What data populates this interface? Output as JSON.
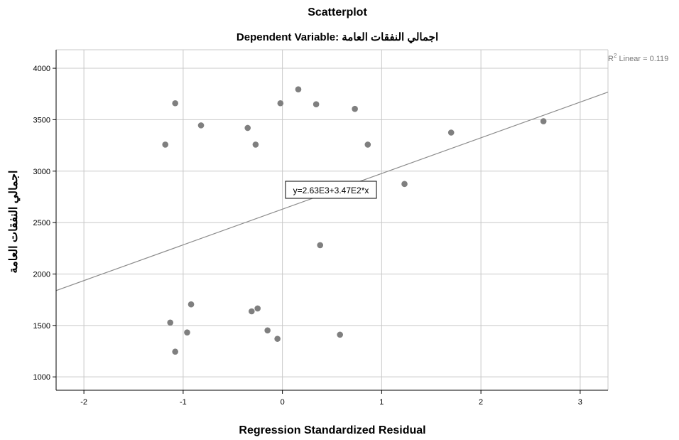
{
  "chart_data": {
    "type": "scatter",
    "title": "Scatterplot",
    "subtitle": "Dependent Variable: اجمالي النفقات العامة",
    "xlabel": "Regression Standardized Residual",
    "ylabel": "اجمالي النفقات العامة",
    "xlim": [
      -2.28,
      3.28
    ],
    "ylim": [
      870,
      4180
    ],
    "x_ticks": [
      "-2",
      "-1",
      "0",
      "1",
      "2",
      "3"
    ],
    "y_ticks": [
      "1000",
      "1500",
      "2000",
      "2500",
      "3000",
      "3500",
      "4000"
    ],
    "grid": true,
    "points": [
      {
        "x": -1.08,
        "y": 3660
      },
      {
        "x": -0.82,
        "y": 3445
      },
      {
        "x": -1.18,
        "y": 3258
      },
      {
        "x": -0.35,
        "y": 3420
      },
      {
        "x": -0.27,
        "y": 3258
      },
      {
        "x": -0.02,
        "y": 3660
      },
      {
        "x": 0.16,
        "y": 3795
      },
      {
        "x": 0.34,
        "y": 3650
      },
      {
        "x": 0.73,
        "y": 3605
      },
      {
        "x": 0.86,
        "y": 3258
      },
      {
        "x": 1.23,
        "y": 2875
      },
      {
        "x": 1.7,
        "y": 3375
      },
      {
        "x": 2.63,
        "y": 3485
      },
      {
        "x": 0.38,
        "y": 2280
      },
      {
        "x": -1.13,
        "y": 1528
      },
      {
        "x": -0.92,
        "y": 1705
      },
      {
        "x": -0.96,
        "y": 1432
      },
      {
        "x": -1.08,
        "y": 1245
      },
      {
        "x": -0.31,
        "y": 1637
      },
      {
        "x": -0.25,
        "y": 1665
      },
      {
        "x": -0.15,
        "y": 1452
      },
      {
        "x": -0.05,
        "y": 1370
      },
      {
        "x": 0.58,
        "y": 1410
      }
    ],
    "fit_line": {
      "intercept": 2630,
      "slope": 347
    },
    "equation_label": "y=2.63E3+3.47E2*x",
    "r2_label_prefix": "R",
    "r2_label_sup": "2",
    "r2_label_suffix": " Linear = 0.119",
    "colors": {
      "point": "#7f7f7f",
      "line": "#8c8c8c",
      "grid": "#c8c8c8",
      "axis": "#000000"
    }
  }
}
